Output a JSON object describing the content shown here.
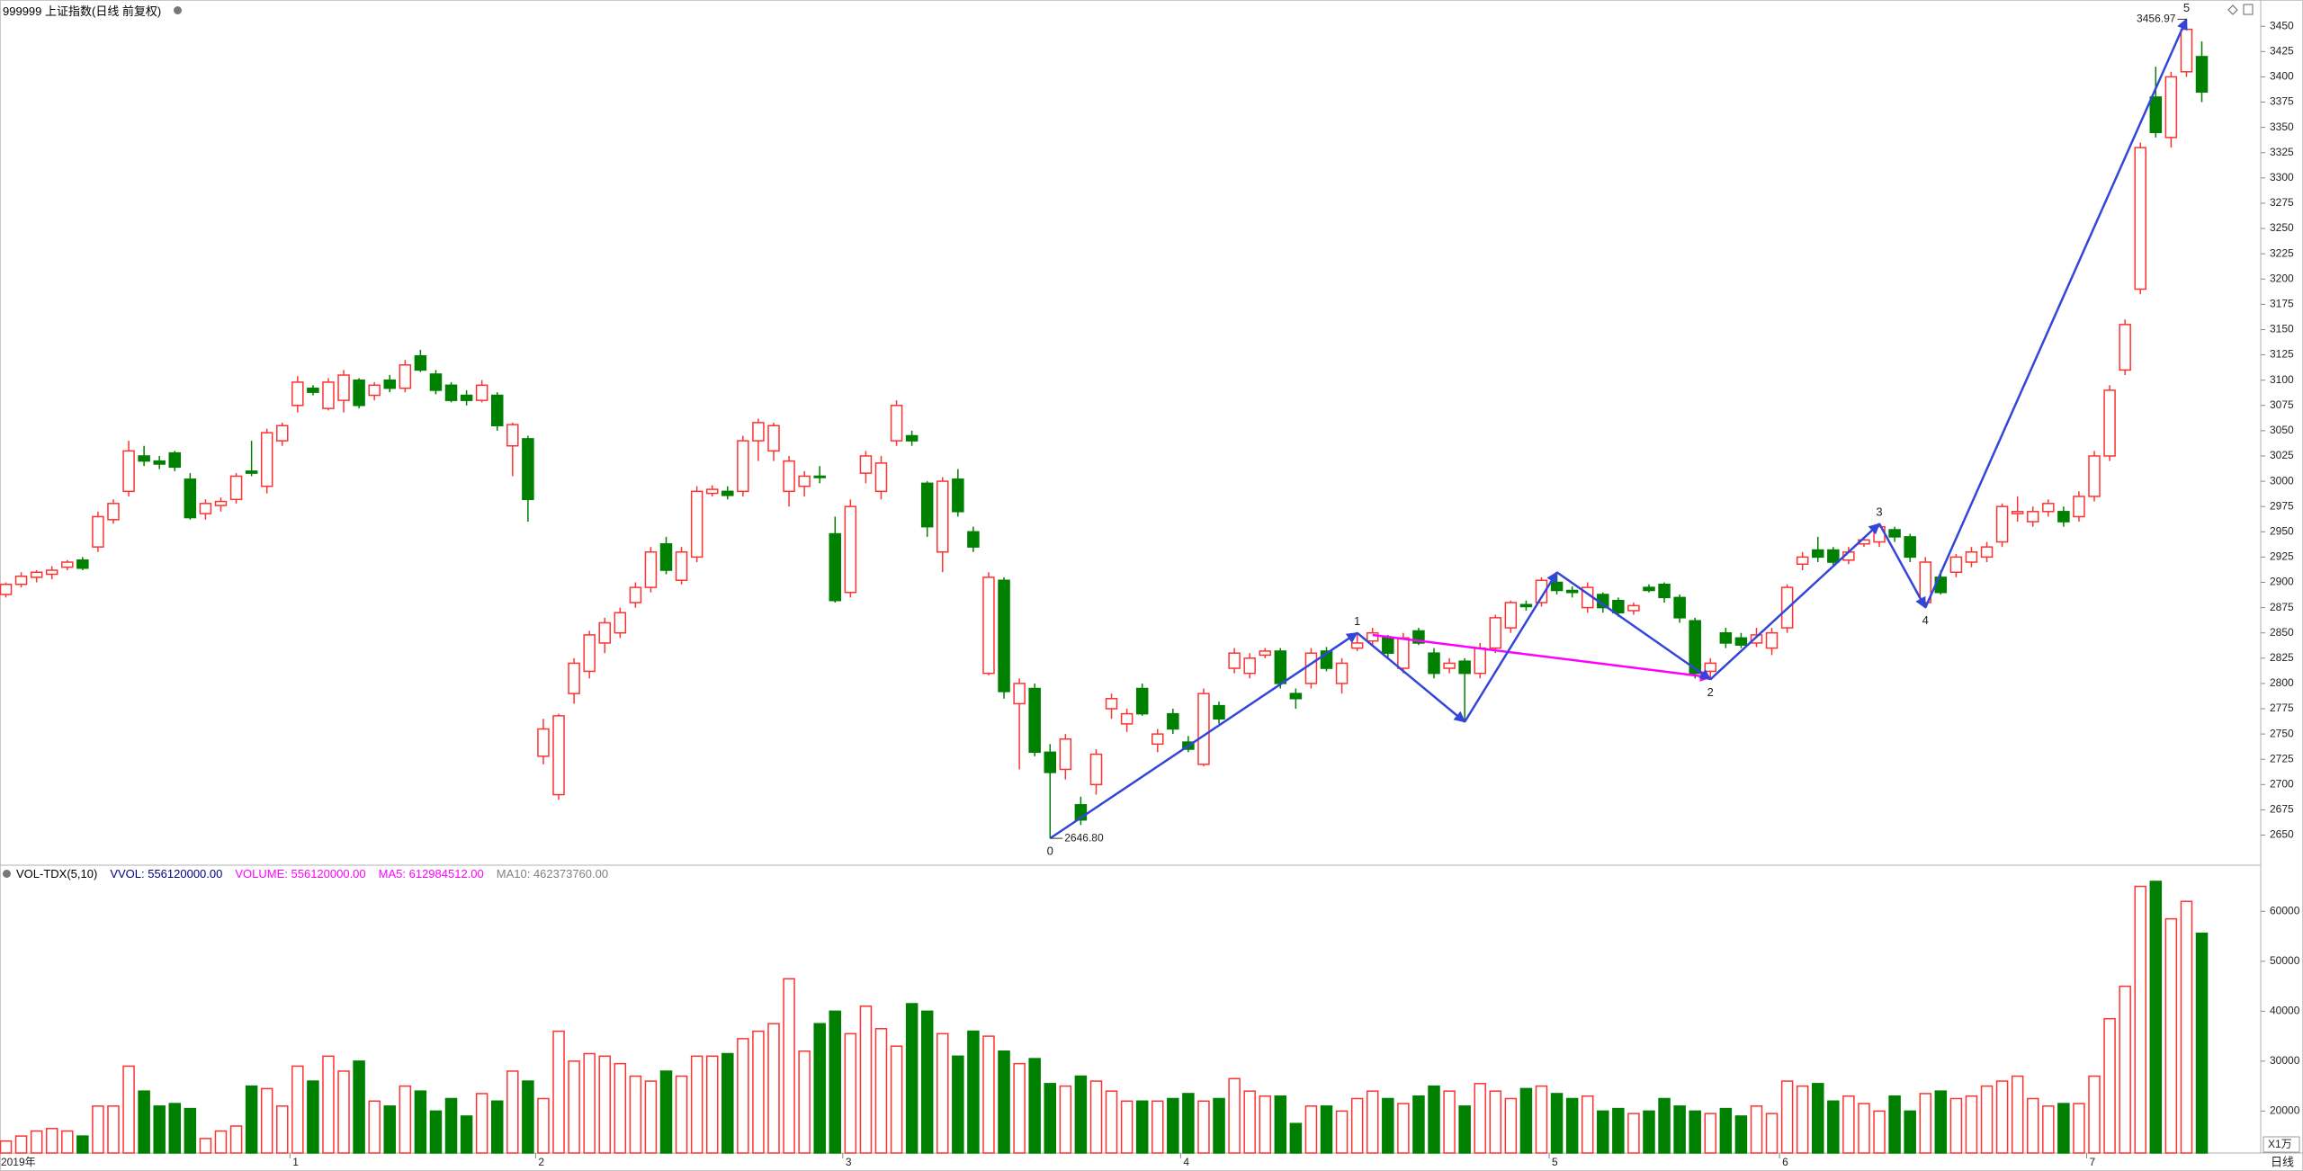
{
  "chart_data": [
    {
      "type": "candlestick",
      "title": "999999 上证指数(日线 前复权)",
      "up_color": "#ff3232",
      "down_color": "#008000",
      "ylim": [
        2622,
        3476
      ],
      "yticks": [
        2650,
        2675,
        2700,
        2725,
        2750,
        2775,
        2800,
        2825,
        2850,
        2875,
        2900,
        2925,
        2950,
        2975,
        3000,
        3025,
        3050,
        3075,
        3100,
        3125,
        3150,
        3175,
        3200,
        3225,
        3250,
        3275,
        3300,
        3325,
        3350,
        3375,
        3400,
        3425,
        3450
      ],
      "candles": [
        [
          2888,
          2900,
          2885,
          2898
        ],
        [
          2898,
          2910,
          2895,
          2906
        ],
        [
          2905,
          2912,
          2900,
          2910
        ],
        [
          2908,
          2916,
          2903,
          2912
        ],
        [
          2915,
          2922,
          2912,
          2920
        ],
        [
          2922,
          2925,
          2912,
          2914
        ],
        [
          2935,
          2970,
          2930,
          2965
        ],
        [
          2962,
          2982,
          2958,
          2978
        ],
        [
          2990,
          3040,
          2985,
          3030
        ],
        [
          3025,
          3035,
          3015,
          3020
        ],
        [
          3020,
          3025,
          3012,
          3017
        ],
        [
          3028,
          3030,
          3010,
          3014
        ],
        [
          3002,
          3008,
          2962,
          2964
        ],
        [
          2968,
          2982,
          2962,
          2978
        ],
        [
          2976,
          2984,
          2970,
          2980
        ],
        [
          2982,
          3008,
          2978,
          3005
        ],
        [
          3010,
          3040,
          3005,
          3008
        ],
        [
          2995,
          3052,
          2988,
          3048
        ],
        [
          3040,
          3058,
          3035,
          3055
        ],
        [
          3075,
          3104,
          3068,
          3098
        ],
        [
          3092,
          3095,
          3085,
          3088
        ],
        [
          3072,
          3102,
          3070,
          3098
        ],
        [
          3080,
          3110,
          3068,
          3105
        ],
        [
          3100,
          3102,
          3072,
          3075
        ],
        [
          3085,
          3098,
          3080,
          3095
        ],
        [
          3100,
          3105,
          3088,
          3092
        ],
        [
          3092,
          3120,
          3088,
          3115
        ],
        [
          3124,
          3130,
          3108,
          3110
        ],
        [
          3106,
          3110,
          3086,
          3090
        ],
        [
          3095,
          3098,
          3078,
          3080
        ],
        [
          3085,
          3090,
          3075,
          3080
        ],
        [
          3080,
          3100,
          3078,
          3095
        ],
        [
          3085,
          3088,
          3050,
          3055
        ],
        [
          3035,
          3058,
          3005,
          3056
        ],
        [
          3042,
          3045,
          2960,
          2982
        ],
        [
          2728,
          2765,
          2720,
          2755
        ],
        [
          2690,
          2770,
          2685,
          2768
        ],
        [
          2790,
          2825,
          2780,
          2820
        ],
        [
          2812,
          2852,
          2805,
          2848
        ],
        [
          2840,
          2865,
          2830,
          2860
        ],
        [
          2850,
          2875,
          2845,
          2870
        ],
        [
          2880,
          2900,
          2875,
          2895
        ],
        [
          2895,
          2935,
          2890,
          2930
        ],
        [
          2938,
          2945,
          2908,
          2912
        ],
        [
          2902,
          2935,
          2898,
          2930
        ],
        [
          2925,
          2995,
          2920,
          2990
        ],
        [
          2988,
          2996,
          2985,
          2992
        ],
        [
          2990,
          2995,
          2982,
          2986
        ],
        [
          2990,
          3045,
          2985,
          3040
        ],
        [
          3040,
          3062,
          3020,
          3058
        ],
        [
          3030,
          3058,
          3020,
          3055
        ],
        [
          2990,
          3025,
          2975,
          3020
        ],
        [
          2995,
          3010,
          2985,
          3005
        ],
        [
          3005,
          3015,
          2998,
          3004
        ],
        [
          2948,
          2965,
          2880,
          2882
        ],
        [
          2890,
          2982,
          2885,
          2975
        ],
        [
          3008,
          3030,
          2998,
          3025
        ],
        [
          2990,
          3025,
          2982,
          3018
        ],
        [
          3040,
          3080,
          3035,
          3075
        ],
        [
          3045,
          3050,
          3035,
          3040
        ],
        [
          2998,
          3000,
          2945,
          2955
        ],
        [
          2930,
          3004,
          2910,
          3000
        ],
        [
          3002,
          3012,
          2965,
          2970
        ],
        [
          2950,
          2955,
          2930,
          2935
        ],
        [
          2810,
          2910,
          2808,
          2905
        ],
        [
          2902,
          2905,
          2785,
          2792
        ],
        [
          2780,
          2805,
          2715,
          2800
        ],
        [
          2795,
          2800,
          2728,
          2732
        ],
        [
          2732,
          2740,
          2646.8,
          2712
        ],
        [
          2715,
          2750,
          2705,
          2745
        ],
        [
          2680,
          2688,
          2660,
          2665
        ],
        [
          2700,
          2735,
          2690,
          2730
        ],
        [
          2775,
          2790,
          2765,
          2785
        ],
        [
          2760,
          2775,
          2752,
          2770
        ],
        [
          2795,
          2800,
          2768,
          2770
        ],
        [
          2740,
          2755,
          2732,
          2750
        ],
        [
          2770,
          2775,
          2750,
          2755
        ],
        [
          2742,
          2748,
          2732,
          2735
        ],
        [
          2720,
          2795,
          2718,
          2790
        ],
        [
          2778,
          2782,
          2760,
          2765
        ],
        [
          2815,
          2835,
          2810,
          2830
        ],
        [
          2810,
          2830,
          2805,
          2825
        ],
        [
          2828,
          2835,
          2825,
          2832
        ],
        [
          2832,
          2835,
          2795,
          2800
        ],
        [
          2790,
          2795,
          2775,
          2785
        ],
        [
          2800,
          2835,
          2795,
          2830
        ],
        [
          2832,
          2836,
          2812,
          2815
        ],
        [
          2800,
          2825,
          2790,
          2820
        ],
        [
          2835,
          2850,
          2832,
          2840
        ],
        [
          2842,
          2855,
          2838,
          2850
        ],
        [
          2845,
          2848,
          2825,
          2830
        ],
        [
          2815,
          2850,
          2810,
          2845
        ],
        [
          2852,
          2855,
          2838,
          2840
        ],
        [
          2830,
          2835,
          2805,
          2810
        ],
        [
          2815,
          2825,
          2810,
          2820
        ],
        [
          2822,
          2825,
          2762,
          2810
        ],
        [
          2810,
          2840,
          2805,
          2835
        ],
        [
          2835,
          2868,
          2830,
          2865
        ],
        [
          2855,
          2882,
          2850,
          2880
        ],
        [
          2878,
          2882,
          2872,
          2876
        ],
        [
          2880,
          2905,
          2876,
          2902
        ],
        [
          2900,
          2910,
          2888,
          2892
        ],
        [
          2892,
          2896,
          2885,
          2890
        ],
        [
          2875,
          2900,
          2870,
          2895
        ],
        [
          2888,
          2890,
          2870,
          2875
        ],
        [
          2882,
          2885,
          2866,
          2870
        ],
        [
          2872,
          2880,
          2868,
          2877
        ],
        [
          2895,
          2898,
          2890,
          2892
        ],
        [
          2898,
          2900,
          2880,
          2885
        ],
        [
          2885,
          2888,
          2860,
          2865
        ],
        [
          2862,
          2865,
          2805,
          2810
        ],
        [
          2812,
          2825,
          2804,
          2820
        ],
        [
          2850,
          2855,
          2835,
          2840
        ],
        [
          2845,
          2850,
          2835,
          2838
        ],
        [
          2840,
          2855,
          2836,
          2848
        ],
        [
          2835,
          2855,
          2828,
          2850
        ],
        [
          2855,
          2898,
          2850,
          2895
        ],
        [
          2918,
          2930,
          2912,
          2925
        ],
        [
          2932,
          2945,
          2920,
          2925
        ],
        [
          2932,
          2935,
          2915,
          2920
        ],
        [
          2922,
          2935,
          2918,
          2930
        ],
        [
          2938,
          2945,
          2935,
          2942
        ],
        [
          2940,
          2958,
          2935,
          2955
        ],
        [
          2952,
          2955,
          2940,
          2945
        ],
        [
          2945,
          2948,
          2920,
          2925
        ],
        [
          2880,
          2925,
          2875,
          2920
        ],
        [
          2905,
          2912,
          2888,
          2890
        ],
        [
          2910,
          2928,
          2905,
          2925
        ],
        [
          2920,
          2935,
          2915,
          2930
        ],
        [
          2925,
          2940,
          2920,
          2935
        ],
        [
          2940,
          2978,
          2935,
          2975
        ],
        [
          2968,
          2985,
          2960,
          2970
        ],
        [
          2960,
          2975,
          2955,
          2970
        ],
        [
          2970,
          2982,
          2965,
          2978
        ],
        [
          2970,
          2975,
          2955,
          2960
        ],
        [
          2965,
          2990,
          2960,
          2985
        ],
        [
          2985,
          3030,
          2980,
          3025
        ],
        [
          3025,
          3095,
          3020,
          3090
        ],
        [
          3110,
          3160,
          3105,
          3155
        ],
        [
          3190,
          3335,
          3185,
          3330
        ],
        [
          3380,
          3410,
          3340,
          3345
        ],
        [
          3340,
          3405,
          3330,
          3400
        ],
        [
          3405,
          3456.97,
          3400,
          3447
        ],
        [
          3420,
          3435,
          3375,
          3385
        ]
      ],
      "x_labels": [
        {
          "index": 0,
          "label": "2019年"
        },
        {
          "index": 19,
          "label": "1"
        },
        {
          "index": 35,
          "label": "2"
        },
        {
          "index": 55,
          "label": "3"
        },
        {
          "index": 77,
          "label": "4"
        },
        {
          "index": 101,
          "label": "5"
        },
        {
          "index": 116,
          "label": "6"
        },
        {
          "index": 136,
          "label": "7"
        }
      ],
      "wave_color": "#3446d8",
      "waves": [
        {
          "label": "0",
          "index": 68,
          "price": 2646.8
        },
        {
          "label": "1",
          "index": 88,
          "price": 2850
        },
        {
          "index": 95,
          "price": 2762
        },
        {
          "index": 101,
          "price": 2910
        },
        {
          "label": "2",
          "index": 111,
          "price": 2804
        },
        {
          "label": "3",
          "index": 122,
          "price": 2958
        },
        {
          "label": "4",
          "index": 125,
          "price": 2875
        },
        {
          "label": "5",
          "index": 142,
          "price": 3456.97
        }
      ],
      "trend_line": {
        "color": "#ff00ff",
        "from": {
          "index": 89,
          "price": 2848
        },
        "to": {
          "index": 111,
          "price": 2806
        }
      },
      "extreme_labels": [
        {
          "index": 68,
          "value": 2646.8,
          "label": "2646.80",
          "side": "right"
        },
        {
          "index": 142,
          "value": 3456.97,
          "label": "3456.97",
          "side": "left"
        }
      ]
    },
    {
      "type": "bar",
      "title": "VOL-TDX(5,10)",
      "legend": [
        {
          "text": "VVOL: 556120000.00",
          "color": "#000080"
        },
        {
          "text": "VOLUME: 556120000.00",
          "color": "#ff00ff"
        },
        {
          "text": "MA5: 612984512.00",
          "color": "#ff00ff"
        },
        {
          "text": "MA10: 462373760.00",
          "color": "#808080"
        }
      ],
      "unit_label": "X1万",
      "ylim": [
        11600,
        66000
      ],
      "yticks": [
        20000,
        30000,
        40000,
        50000,
        60000
      ],
      "values": [
        14000,
        15000,
        16000,
        16500,
        16000,
        15000,
        21000,
        21000,
        29000,
        24000,
        21000,
        21500,
        20500,
        14500,
        16000,
        17000,
        25000,
        24500,
        21000,
        29000,
        26000,
        31000,
        28000,
        30000,
        22000,
        21000,
        25000,
        24000,
        20000,
        22500,
        19000,
        23500,
        22000,
        28000,
        26000,
        22500,
        36000,
        30000,
        31500,
        31000,
        29500,
        27000,
        26000,
        28000,
        27000,
        31000,
        31000,
        31500,
        34500,
        36000,
        37500,
        46500,
        32000,
        37500,
        40000,
        35500,
        41000,
        36500,
        33000,
        41500,
        40000,
        35500,
        31000,
        36000,
        35000,
        32000,
        29500,
        30500,
        25500,
        25000,
        27000,
        26000,
        24000,
        22000,
        22000,
        22000,
        22500,
        23500,
        22000,
        22500,
        26500,
        24000,
        23000,
        23000,
        17500,
        21000,
        21000,
        20000,
        22500,
        24000,
        22500,
        21500,
        23000,
        25000,
        24000,
        21000,
        25500,
        24000,
        22500,
        24500,
        25000,
        23500,
        22500,
        23000,
        20000,
        20500,
        19500,
        20000,
        22500,
        21000,
        20000,
        19500,
        20500,
        19000,
        21000,
        19500,
        26000,
        25000,
        25500,
        22000,
        23000,
        21500,
        20000,
        23000,
        20000,
        23500,
        24000,
        22500,
        23000,
        25000,
        26000,
        27000,
        22500,
        21000,
        21500,
        21500,
        27000,
        38500,
        45000,
        65000,
        66000,
        58500,
        62000,
        55612
      ]
    }
  ],
  "footer": {
    "period": "日线"
  }
}
